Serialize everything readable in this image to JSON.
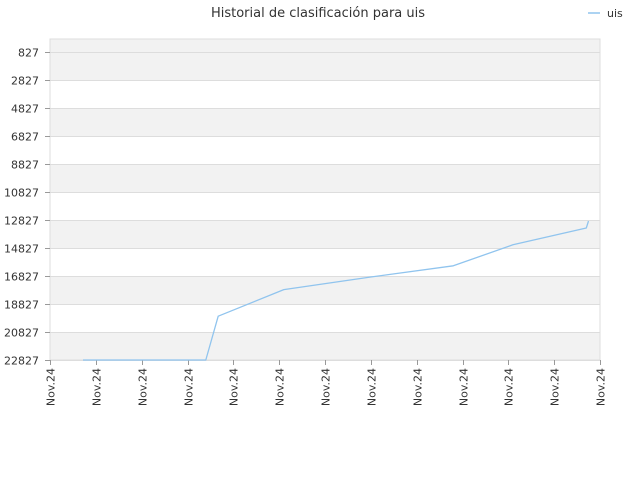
{
  "chart_data": {
    "type": "line",
    "title": "Historial de clasificación para uis",
    "xlabel": "",
    "ylabel": "",
    "y_reversed": true,
    "ylim": [
      827,
      22827
    ],
    "y_ticks": [
      827,
      2827,
      4827,
      6827,
      8827,
      10827,
      12827,
      14827,
      16827,
      18827,
      20827,
      22827
    ],
    "x_tick_labels": [
      "Nov.24",
      "Nov.24",
      "Nov.24",
      "Nov.24",
      "Nov.24",
      "Nov.24",
      "Nov.24",
      "Nov.24",
      "Nov.24",
      "Nov.24",
      "Nov.24",
      "Nov.24",
      "Nov.24"
    ],
    "xlim": [
      0,
      12
    ],
    "grid": true,
    "legend_position": "top-right",
    "series": [
      {
        "name": "uis",
        "color": "#90c4ee",
        "x": [
          0.72,
          3.4,
          3.67,
          5.1,
          7.0,
          8.8,
          10.1,
          11.7,
          11.75
        ],
        "y": [
          22827,
          22827,
          19700,
          17800,
          16900,
          16100,
          14600,
          13400,
          12900
        ]
      }
    ]
  },
  "colors": {
    "band_shaded": "#f2f2f2",
    "band_plain": "#ffffff",
    "grid": "#dddddd",
    "line": "#90c4ee"
  }
}
